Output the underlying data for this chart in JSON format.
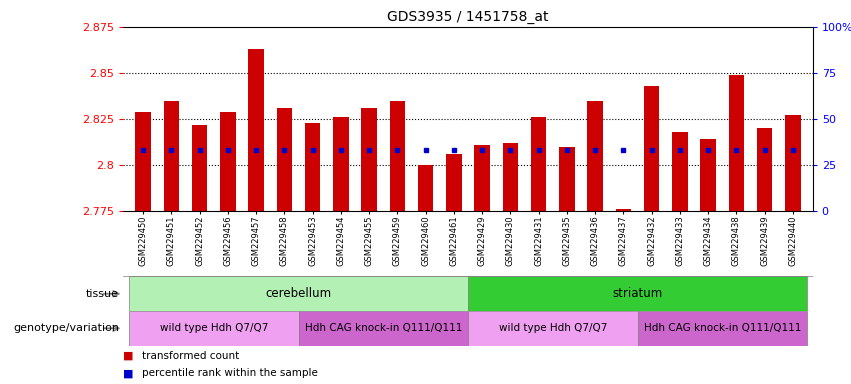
{
  "title": "GDS3935 / 1451758_at",
  "samples": [
    "GSM229450",
    "GSM229451",
    "GSM229452",
    "GSM229456",
    "GSM229457",
    "GSM229458",
    "GSM229453",
    "GSM229454",
    "GSM229455",
    "GSM229459",
    "GSM229460",
    "GSM229461",
    "GSM229429",
    "GSM229430",
    "GSM229431",
    "GSM229435",
    "GSM229436",
    "GSM229437",
    "GSM229432",
    "GSM229433",
    "GSM229434",
    "GSM229438",
    "GSM229439",
    "GSM229440"
  ],
  "transformed_count": [
    2.829,
    2.835,
    2.822,
    2.829,
    2.863,
    2.831,
    2.823,
    2.826,
    2.831,
    2.835,
    2.8,
    2.806,
    2.811,
    2.812,
    2.826,
    2.81,
    2.835,
    2.776,
    2.843,
    2.818,
    2.814,
    2.849,
    2.82,
    2.827
  ],
  "percentile_values": [
    2.808,
    2.808,
    2.808,
    2.808,
    2.808,
    2.808,
    2.808,
    2.808,
    2.808,
    2.808,
    2.808,
    2.808,
    2.808,
    2.808,
    2.808,
    2.808,
    2.808,
    2.808,
    2.808,
    2.808,
    2.808,
    2.808,
    2.808,
    2.808
  ],
  "ymin": 2.775,
  "ymax": 2.875,
  "yticks": [
    2.775,
    2.8,
    2.825,
    2.85,
    2.875
  ],
  "ytick_labels": [
    "2.775",
    "2.8",
    "2.825",
    "2.85",
    "2.875"
  ],
  "right_yticks_pct": [
    0,
    25,
    50,
    75,
    100
  ],
  "right_ytick_labels": [
    "0",
    "25",
    "50",
    "75",
    "100%"
  ],
  "bar_color": "#cc0000",
  "blue_color": "#0000cc",
  "tissue_groups": [
    {
      "label": "cerebellum",
      "start": 0,
      "end": 11,
      "color": "#b3f0b3"
    },
    {
      "label": "striatum",
      "start": 12,
      "end": 23,
      "color": "#33cc33"
    }
  ],
  "genotype_groups": [
    {
      "label": "wild type Hdh Q7/Q7",
      "start": 0,
      "end": 5,
      "color": "#f0a0f0"
    },
    {
      "label": "Hdh CAG knock-in Q111/Q111",
      "start": 6,
      "end": 11,
      "color": "#cc66cc"
    },
    {
      "label": "wild type Hdh Q7/Q7",
      "start": 12,
      "end": 17,
      "color": "#f0a0f0"
    },
    {
      "label": "Hdh CAG knock-in Q111/Q111",
      "start": 18,
      "end": 23,
      "color": "#cc66cc"
    }
  ],
  "tissue_label": "tissue",
  "genotype_label": "genotype/variation",
  "legend_items": [
    {
      "label": "transformed count",
      "color": "#cc0000"
    },
    {
      "label": "percentile rank within the sample",
      "color": "#0000cc"
    }
  ],
  "bar_width": 0.55,
  "plot_bg_color": "#ffffff"
}
